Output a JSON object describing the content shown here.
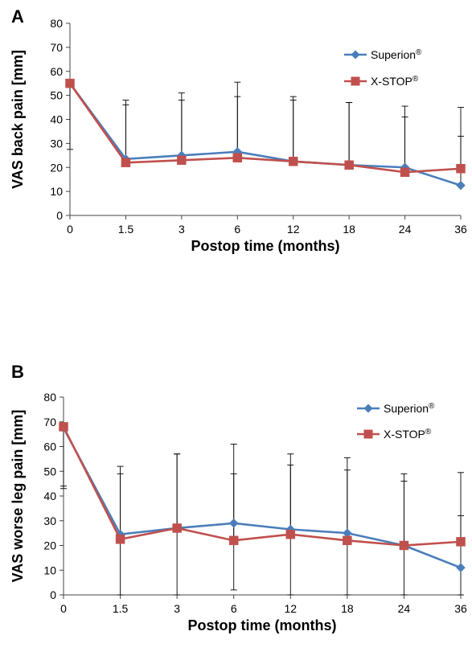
{
  "chart_data": [
    {
      "panel": "A",
      "type": "line",
      "x": [
        "0",
        "1.5",
        "3",
        "6",
        "12",
        "18",
        "24",
        "36"
      ],
      "xlabel": "Postop time (months)",
      "ylabel": "VAS back pain [mm]",
      "ylim": [
        0,
        80
      ],
      "yticks": [
        "0",
        "10",
        "20",
        "30",
        "40",
        "50",
        "60",
        "70",
        "80"
      ],
      "grid": false,
      "legend_position": "top-right",
      "series": [
        {
          "name": "Superion",
          "superscript": "®",
          "color": "#4a7ebb",
          "marker": "diamond",
          "values": [
            55,
            23.5,
            25,
            26.5,
            22.5,
            21,
            20,
            12.5
          ],
          "error_upper": [
            55,
            48,
            51,
            55.5,
            49.5,
            47,
            45.5,
            33
          ]
        },
        {
          "name": "X-STOP",
          "superscript": "®",
          "color": "#c0504d",
          "marker": "square",
          "values": [
            55,
            22,
            23,
            24,
            22.5,
            21,
            18,
            19.5
          ],
          "error_upper": [
            27.5,
            46,
            48,
            49.5,
            48,
            47,
            41,
            45
          ]
        }
      ]
    },
    {
      "panel": "B",
      "type": "line",
      "x": [
        "0",
        "1.5",
        "3",
        "6",
        "12",
        "18",
        "24",
        "36"
      ],
      "xlabel": "Postop time (months)",
      "ylabel": "VAS worse leg pain [mm]",
      "ylim": [
        0,
        80
      ],
      "yticks": [
        "0",
        "10",
        "20",
        "30",
        "40",
        "50",
        "60",
        "70",
        "80"
      ],
      "grid": false,
      "legend_position": "top-right",
      "series": [
        {
          "name": "Superion",
          "superscript": "®",
          "color": "#4a7ebb",
          "marker": "diamond",
          "values": [
            67.5,
            24.5,
            27,
            29,
            26.5,
            25,
            20,
            11
          ],
          "error_upper": [
            67.5,
            52,
            57,
            61,
            57,
            55.5,
            49,
            49.5
          ],
          "error_lower": [
            43,
            0,
            0,
            2,
            0,
            0,
            0,
            0
          ]
        },
        {
          "name": "X-STOP",
          "superscript": "®",
          "color": "#c0504d",
          "marker": "square",
          "values": [
            68,
            22.5,
            27,
            22,
            24.5,
            22,
            20,
            21.5
          ],
          "error_upper": [
            44,
            49,
            57,
            49,
            52.5,
            50.5,
            46,
            32
          ]
        }
      ]
    }
  ]
}
